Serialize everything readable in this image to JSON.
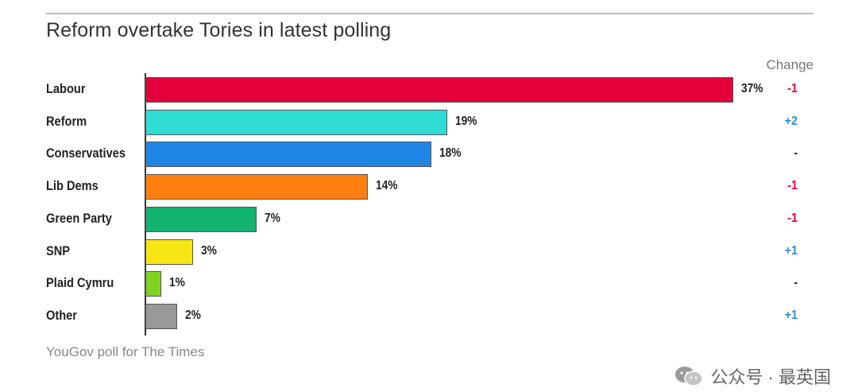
{
  "title": "Reform overtake Tories in latest polling",
  "change_header": "Change",
  "source": "YouGov poll for The Times",
  "watermark": "公众号 · 最英国",
  "chart_data": {
    "type": "bar",
    "orientation": "horizontal",
    "title": "Reform overtake Tories in latest polling",
    "xlabel": "",
    "ylabel": "",
    "xlim": [
      0,
      37
    ],
    "categories": [
      "Labour",
      "Reform",
      "Conservatives",
      "Lib Dems",
      "Green Party",
      "SNP",
      "Plaid Cymru",
      "Other"
    ],
    "values": [
      37,
      19,
      18,
      14,
      7,
      3,
      1,
      2
    ],
    "value_labels": [
      "37%",
      "19%",
      "18%",
      "14%",
      "7%",
      "3%",
      "1%",
      "2%"
    ],
    "changes": [
      "-1",
      "+2",
      "-",
      "-1",
      "-1",
      "+1",
      "-",
      "+1"
    ],
    "colors": [
      "#e4003b",
      "#2fddd2",
      "#1f86e6",
      "#ff7f0e",
      "#12b36f",
      "#f5e614",
      "#7ed321",
      "#999999"
    ],
    "change_colors": {
      "negative": "#e4003b",
      "positive": "#2b8fd6",
      "neutral": "#222222"
    }
  }
}
